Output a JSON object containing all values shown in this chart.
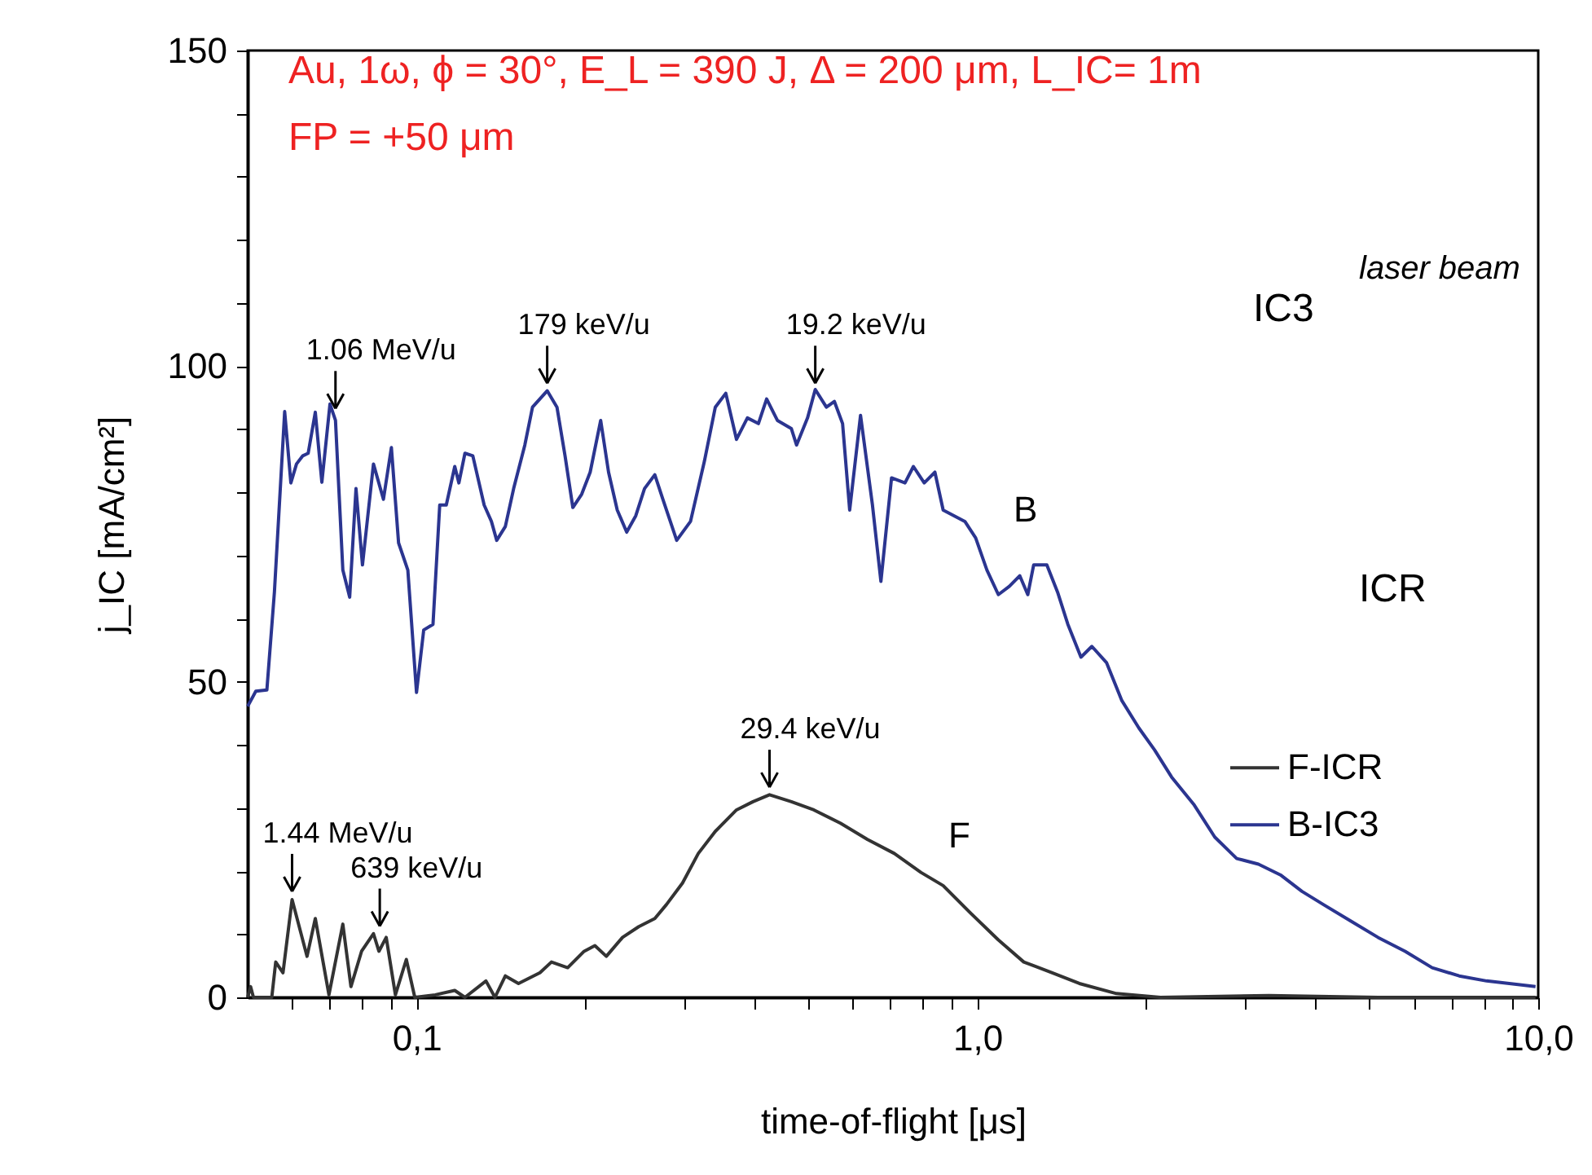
{
  "chart_data": {
    "type": "line",
    "xlabel": "time-of-flight  [μs]",
    "ylabel": "j_IC  [mA/cm²]",
    "log": "x",
    "grid": false,
    "legend": "right",
    "line_style": "solid",
    "marker": "none",
    "xlim": [
      0.05,
      10
    ],
    "ylim": [
      0,
      150
    ],
    "xticks": [
      {
        "value": 0.06,
        "label": null
      },
      {
        "value": 0.07,
        "label": null
      },
      {
        "value": 0.08,
        "label": null
      },
      {
        "value": 0.09,
        "label": null
      },
      {
        "value": 0.1,
        "label": "0,1"
      },
      {
        "value": 0.2,
        "label": null
      },
      {
        "value": 0.3,
        "label": null
      },
      {
        "value": 0.4,
        "label": null
      },
      {
        "value": 0.5,
        "label": null
      },
      {
        "value": 0.6,
        "label": null
      },
      {
        "value": 0.7,
        "label": null
      },
      {
        "value": 0.8,
        "label": null
      },
      {
        "value": 0.9,
        "label": null
      },
      {
        "value": 1,
        "label": "1,0"
      },
      {
        "value": 2,
        "label": null
      },
      {
        "value": 3,
        "label": null
      },
      {
        "value": 4,
        "label": null
      },
      {
        "value": 5,
        "label": null
      },
      {
        "value": 6,
        "label": null
      },
      {
        "value": 7,
        "label": null
      },
      {
        "value": 8,
        "label": null
      },
      {
        "value": 9,
        "label": null
      },
      {
        "value": 10,
        "label": "10,0"
      }
    ],
    "yticks": [
      0,
      {
        "value": 10,
        "label": null
      },
      {
        "value": 20,
        "label": null
      },
      {
        "value": 30,
        "label": null
      },
      {
        "value": 40,
        "label": null
      },
      50,
      {
        "value": 60,
        "label": null
      },
      {
        "value": 70,
        "label": null
      },
      {
        "value": 80,
        "label": null
      },
      {
        "value": 90,
        "label": null
      },
      100,
      {
        "value": 110,
        "label": null
      },
      {
        "value": 120,
        "label": null
      },
      {
        "value": 130,
        "label": null
      },
      {
        "value": 140,
        "label": null
      },
      150
    ],
    "series": [
      {
        "name": "F-ICR",
        "color": "#333333",
        "x": [
          0.05,
          0.0506,
          0.0512,
          0.0552,
          0.0561,
          0.0578,
          0.06,
          0.0638,
          0.066,
          0.0698,
          0.0739,
          0.0764,
          0.0798,
          0.0838,
          0.0857,
          0.0883,
          0.0917,
          0.0959,
          0.0993,
          0.108,
          0.117,
          0.122,
          0.133,
          0.138,
          0.144,
          0.152,
          0.166,
          0.174,
          0.186,
          0.199,
          0.208,
          0.218,
          0.233,
          0.249,
          0.266,
          0.279,
          0.298,
          0.318,
          0.341,
          0.372,
          0.398,
          0.426,
          0.466,
          0.511,
          0.57,
          0.637,
          0.711,
          0.793,
          0.869,
          0.971,
          1.09,
          1.21,
          1.36,
          1.52,
          1.77,
          2.12,
          3.31,
          5.18,
          9.89
        ],
        "values": [
          0,
          1.7,
          0,
          0,
          5.6,
          3.9,
          15.5,
          6.5,
          12.5,
          0.4,
          11.6,
          1.7,
          7.3,
          10.1,
          7.3,
          9.5,
          0.4,
          6.0,
          0,
          0.4,
          1.1,
          0,
          2.6,
          0,
          3.4,
          2.2,
          3.9,
          5.6,
          4.7,
          7.3,
          8.2,
          6.5,
          9.5,
          11.2,
          12.5,
          14.7,
          18.1,
          22.8,
          26.3,
          29.7,
          31.0,
          32.1,
          31.0,
          29.7,
          27.6,
          25.0,
          22.8,
          19.8,
          17.7,
          13.4,
          9.1,
          5.6,
          3.9,
          2.2,
          0.6,
          0,
          0.3,
          0,
          0
        ]
      },
      {
        "name": "B-IC3",
        "color": "#2b3590",
        "x": [
          0.05,
          0.0517,
          0.0541,
          0.0558,
          0.0582,
          0.0597,
          0.0611,
          0.0627,
          0.0641,
          0.066,
          0.0678,
          0.0701,
          0.0717,
          0.0739,
          0.076,
          0.078,
          0.0801,
          0.0838,
          0.0873,
          0.0902,
          0.0929,
          0.0965,
          0.1,
          0.103,
          0.107,
          0.11,
          0.113,
          0.117,
          0.119,
          0.122,
          0.126,
          0.132,
          0.136,
          0.139,
          0.144,
          0.149,
          0.156,
          0.161,
          0.171,
          0.178,
          0.184,
          0.19,
          0.197,
          0.204,
          0.213,
          0.22,
          0.228,
          0.237,
          0.246,
          0.255,
          0.266,
          0.275,
          0.291,
          0.308,
          0.326,
          0.341,
          0.356,
          0.372,
          0.389,
          0.407,
          0.421,
          0.44,
          0.466,
          0.476,
          0.498,
          0.514,
          0.538,
          0.556,
          0.575,
          0.592,
          0.619,
          0.65,
          0.673,
          0.703,
          0.743,
          0.769,
          0.804,
          0.84,
          0.869,
          0.95,
          0.993,
          1.04,
          1.09,
          1.14,
          1.19,
          1.23,
          1.26,
          1.33,
          1.39,
          1.45,
          1.53,
          1.6,
          1.7,
          1.81,
          1.94,
          2.07,
          2.22,
          2.43,
          2.65,
          2.9,
          3.17,
          3.47,
          3.79,
          4.14,
          4.63,
          5.18,
          5.79,
          6.47,
          7.23,
          8.09,
          9.89
        ],
        "values": [
          46.1,
          48.5,
          48.7,
          64.2,
          92.8,
          81.5,
          84.5,
          85.8,
          86.2,
          92.7,
          81.6,
          94.0,
          91.4,
          67.7,
          63.4,
          80.6,
          68.5,
          84.5,
          78.9,
          87.1,
          72.0,
          67.7,
          48.3,
          58.2,
          59.1,
          78.0,
          78.0,
          84.1,
          81.5,
          86.2,
          85.8,
          78.0,
          75.4,
          72.4,
          74.6,
          80.6,
          87.5,
          93.5,
          96.1,
          93.5,
          85.8,
          77.6,
          79.7,
          83.2,
          91.4,
          83.2,
          77.2,
          73.7,
          76.3,
          80.6,
          82.8,
          78.9,
          72.4,
          75.4,
          84.9,
          93.5,
          95.7,
          88.4,
          91.8,
          90.9,
          94.8,
          91.4,
          90.1,
          87.5,
          91.8,
          96.3,
          93.5,
          94.4,
          90.9,
          77.2,
          92.2,
          78.0,
          65.9,
          82.3,
          81.5,
          84.1,
          81.5,
          83.2,
          77.2,
          75.4,
          72.8,
          67.7,
          63.8,
          65.1,
          66.8,
          63.8,
          68.5,
          68.5,
          64.2,
          59.1,
          53.9,
          55.6,
          53.0,
          47.0,
          42.7,
          39.2,
          34.9,
          30.6,
          25.4,
          22.0,
          21.1,
          19.4,
          16.8,
          14.7,
          12.1,
          9.5,
          7.3,
          4.7,
          3.4,
          2.6,
          1.7
        ]
      }
    ],
    "annotations": [
      "Au, 1ω, ϕ = 30°, E_L = 390 J, Δ = 200 μm, L_IC= 1m",
      "FP = +50 μm",
      "laser beam",
      "IC3",
      "ICR",
      "B",
      "F",
      {
        "text": "1.06 MeV/u",
        "x": 0.0717,
        "y": 92
      },
      {
        "text": "179 keV/u",
        "x": 0.171,
        "y": 96
      },
      {
        "text": "19.2 keV/u",
        "x": 0.514,
        "y": 96
      },
      {
        "text": "1.44 MeV/u",
        "x": 0.06,
        "y": 15.5
      },
      {
        "text": "639 keV/u",
        "x": 0.086,
        "y": 10
      },
      {
        "text": "29.4 keV/u",
        "x": 0.426,
        "y": 32
      }
    ]
  }
}
